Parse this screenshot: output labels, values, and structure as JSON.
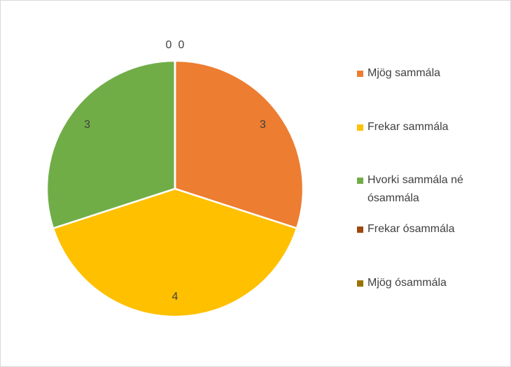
{
  "chart_data": {
    "type": "pie",
    "categories": [
      "Mjög sammála",
      "Frekar sammála",
      "Hvorki sammála né ósammála",
      "Frekar ósammála",
      "Mjög ósammála"
    ],
    "values": [
      3,
      4,
      3,
      0,
      0
    ],
    "colors": [
      "#ED7D31",
      "#FFC000",
      "#70AD47",
      "#9E480E",
      "#997300"
    ],
    "legend": "right"
  }
}
